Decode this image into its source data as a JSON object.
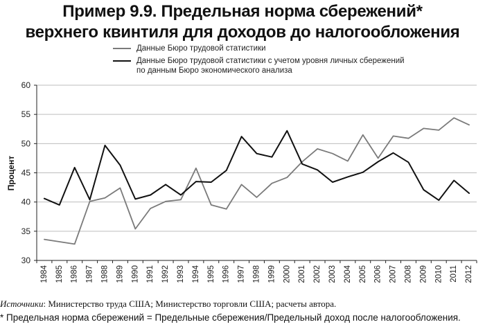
{
  "title_line1": "Пример 9.9. Предельная норма сбережений*",
  "title_line2": "верхнего квинтиля для доходов до налогообложения",
  "chart_data": {
    "type": "line",
    "ylabel": "Процент",
    "xlabel": "",
    "ylim": [
      30,
      60
    ],
    "yticks": [
      30,
      35,
      40,
      45,
      50,
      55,
      60
    ],
    "grid": true,
    "categories": [
      "1984",
      "1985",
      "1986",
      "1987",
      "1988",
      "1989",
      "1990",
      "1991",
      "1992",
      "1993",
      "1994",
      "1995",
      "1996",
      "1997",
      "1998",
      "1999",
      "2000",
      "2001",
      "2002",
      "2003",
      "2004",
      "2005",
      "2006",
      "2007",
      "2008",
      "2009",
      "2010",
      "2011",
      "2012"
    ],
    "series": [
      {
        "name": "Данные Бюро трудовой статистики",
        "color": "#7a7a7a",
        "values": [
          33.6,
          33.2,
          32.8,
          40.1,
          40.7,
          42.4,
          35.4,
          38.9,
          40.1,
          40.4,
          45.8,
          39.5,
          38.8,
          43.0,
          40.8,
          43.2,
          44.2,
          46.9,
          49.1,
          48.3,
          47.0,
          51.5,
          47.5,
          51.3,
          50.9,
          52.6,
          52.3,
          54.4,
          53.2
        ]
      },
      {
        "name": "Данные Бюро трудовой статистики с учетом уровня личных сбережений по данным Бюро экономического анализа",
        "name_line1": "Данные Бюро трудовой статистики с учетом уровня личных сбережений",
        "name_line2": "по данным Бюро экономического анализа",
        "color": "#111111",
        "values": [
          40.6,
          39.5,
          45.9,
          40.4,
          49.7,
          46.3,
          40.5,
          41.2,
          43.0,
          41.2,
          43.5,
          43.4,
          45.4,
          51.2,
          48.3,
          47.7,
          52.2,
          46.5,
          45.5,
          43.4,
          44.3,
          45.1,
          46.9,
          48.4,
          46.8,
          42.1,
          40.3,
          43.7,
          41.5
        ]
      }
    ]
  },
  "source_label": "Источники",
  "source_text": ": Министерство труда США; Министерство торговли США; расчеты автора.",
  "footnote": "* Предельная норма сбережений = Предельные сбережения/Предельный доход после налогообложения."
}
